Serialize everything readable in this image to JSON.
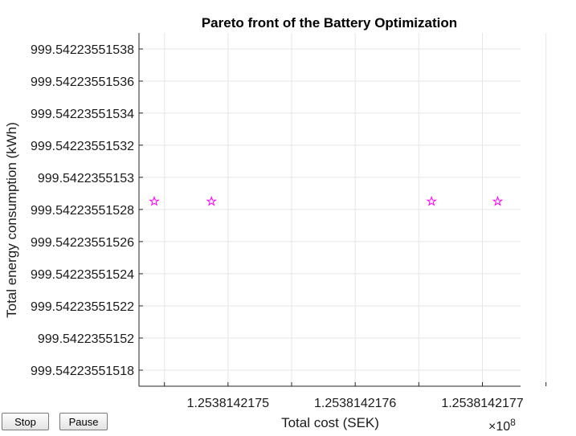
{
  "chart_data": {
    "type": "scatter",
    "title": "Pareto front of the Battery Optimization",
    "xlabel": "Total cost (SEK)",
    "ylabel": "Total energy consumption (kWh)",
    "x_exponent_label": "×10",
    "x_exponent": "8",
    "xlim": [
      1.25381421743,
      1.25381421773
    ],
    "ylim": [
      999.54223551517,
      999.54223551539
    ],
    "x_ticks": [
      1.2538142175,
      1.2538142176,
      1.2538142177
    ],
    "x_tick_labels": [
      "1.2538142175",
      "1.2538142176",
      "1.2538142177"
    ],
    "x_minor_ticks": [
      1.25381421745,
      1.25381421755,
      1.25381421765,
      1.25381421775
    ],
    "y_ticks": [
      999.54223551518,
      999.5422355152,
      999.54223551522,
      999.54223551524,
      999.54223551526,
      999.54223551528,
      999.5422355153,
      999.54223551532,
      999.54223551534,
      999.54223551536,
      999.54223551538
    ],
    "y_tick_labels": [
      "999.54223551518",
      "999.5422355152",
      "999.54223551522",
      "999.54223551524",
      "999.54223551526",
      "999.54223551528",
      "999.5422355153",
      "999.54223551532",
      "999.54223551534",
      "999.54223551536",
      "999.54223551538"
    ],
    "marker": "pentagram",
    "marker_color": "#ff00ff",
    "grid": true,
    "points": [
      {
        "x": 1.253814217442,
        "y": 999.542235515285
      },
      {
        "x": 1.253814217487,
        "y": 999.542235515285
      },
      {
        "x": 1.25381421766,
        "y": 999.542235515285
      },
      {
        "x": 1.253814217712,
        "y": 999.542235515285
      }
    ]
  },
  "controls": {
    "stop_label": "Stop",
    "pause_label": "Pause"
  }
}
